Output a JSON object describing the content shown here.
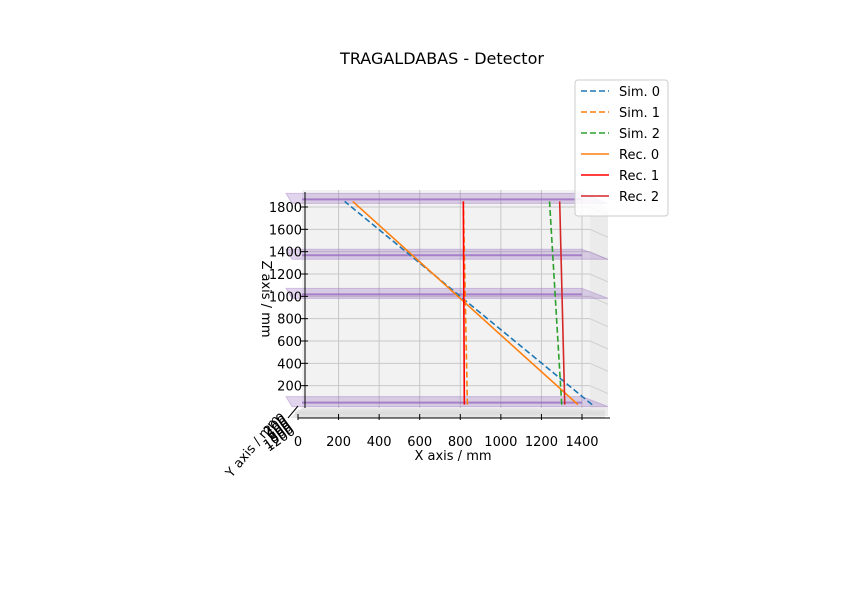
{
  "chart_data": {
    "type": "line",
    "title": "TRAGALDABAS - Detector",
    "xlabel": "X axis / mm",
    "ylabel": "Y axis / mm",
    "zlabel": "Z axis / mm",
    "xlim": [
      0,
      1500
    ],
    "zlim": [
      0,
      1850
    ],
    "x_ticks": [
      "0",
      "200",
      "400",
      "600",
      "800",
      "1000",
      "1200",
      "1400"
    ],
    "z_ticks": [
      "200",
      "400",
      "600",
      "800",
      "1000",
      "1200",
      "1400",
      "1600",
      "1800"
    ],
    "y_ticks": [
      "0",
      "200",
      "400",
      "600",
      "800",
      "1000",
      "1200"
    ],
    "grid": true,
    "legend_position": "top-right",
    "planes_z": [
      30,
      1000,
      1350,
      1850
    ],
    "plane_color": "#9467bd",
    "series": [
      {
        "name": "Sim. 0",
        "style": "dashed",
        "color": "#1f77b4",
        "x": [
          1450,
          230
        ],
        "z": [
          30,
          1850
        ]
      },
      {
        "name": "Sim. 1",
        "style": "dashed",
        "color": "#ff7f0e",
        "x": [
          835,
          815
        ],
        "z": [
          30,
          1850
        ]
      },
      {
        "name": "Sim. 2",
        "style": "dashed",
        "color": "#2ca02c",
        "x": [
          1300,
          1240
        ],
        "z": [
          30,
          1850
        ]
      },
      {
        "name": "Rec. 0",
        "style": "solid",
        "color": "#ff7f0e",
        "x": [
          1380,
          270
        ],
        "z": [
          30,
          1850
        ]
      },
      {
        "name": "Rec. 1",
        "style": "solid",
        "color": "#ff0000",
        "x": [
          820,
          815
        ],
        "z": [
          30,
          1850
        ]
      },
      {
        "name": "Rec. 2",
        "style": "solid",
        "color": "#d62728",
        "x": [
          1315,
          1290
        ],
        "z": [
          30,
          1850
        ]
      }
    ]
  }
}
